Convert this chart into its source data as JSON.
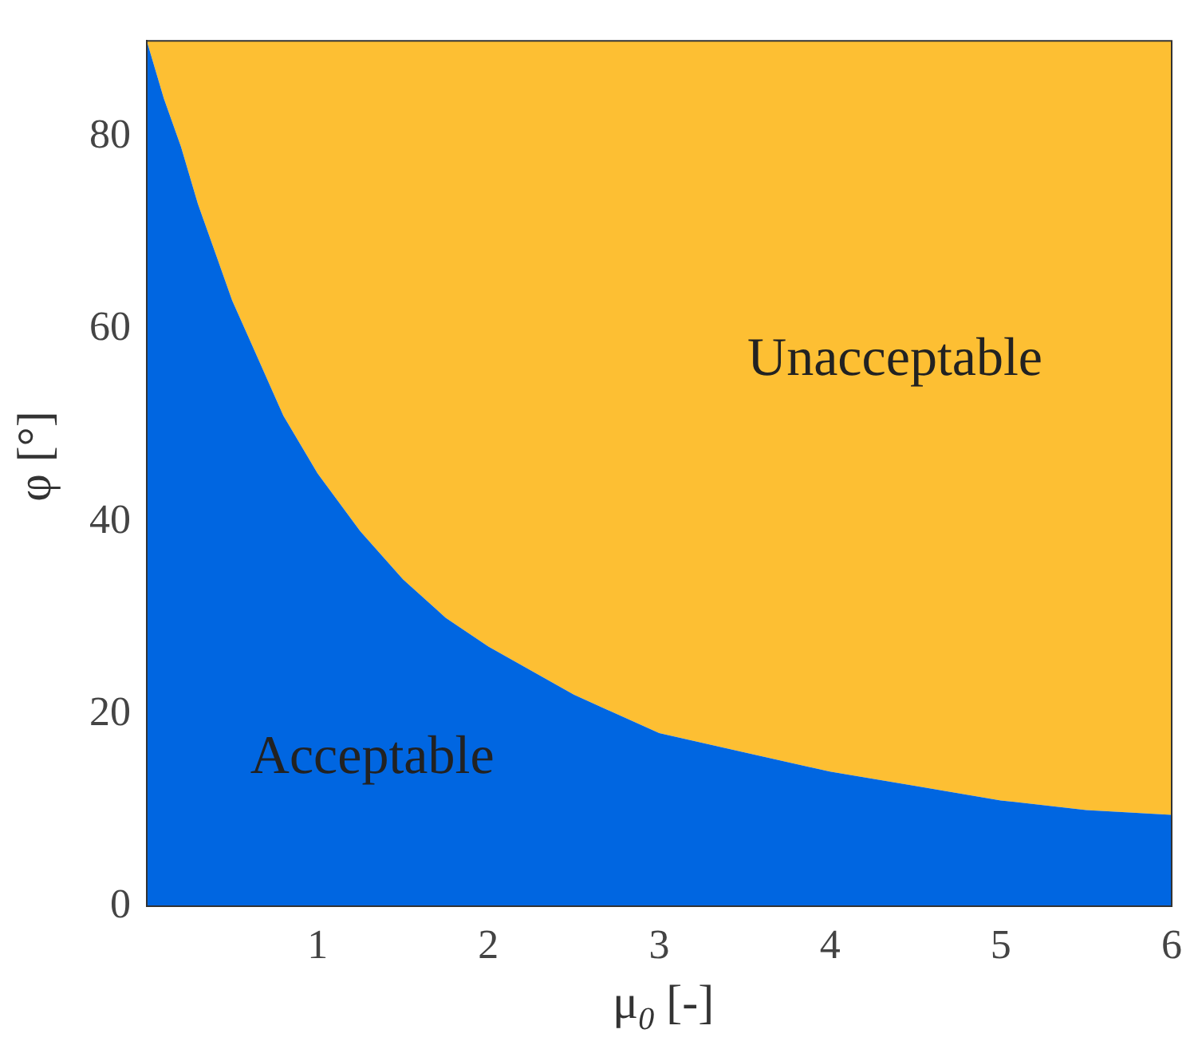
{
  "chart_data": {
    "type": "area",
    "stacked": true,
    "xlabel": "μ$_{0}$ [-]",
    "ylabel": "φ [°]",
    "x": [
      0,
      0.1,
      0.2,
      0.3,
      0.4,
      0.5,
      0.6,
      0.8,
      1,
      1.25,
      1.5,
      1.75,
      2,
      2.5,
      3,
      3.5,
      4,
      4.5,
      5,
      5.5,
      6
    ],
    "xlim": [
      0,
      6
    ],
    "xticks": [
      {
        "value": 0,
        "label": null
      },
      1,
      2,
      3,
      4,
      5,
      6
    ],
    "ylim": [
      0,
      90
    ],
    "yticks": [
      0,
      20,
      40,
      60,
      80
    ],
    "series": [
      {
        "color": "#0066e1",
        "values": [
          90,
          84,
          79,
          73,
          68,
          63,
          59,
          51,
          45,
          39,
          34,
          30,
          27,
          22,
          18,
          16,
          14,
          12.5,
          11,
          10,
          9.5
        ]
      },
      {
        "color": "#fdbf33",
        "values": [
          0,
          6,
          11,
          17,
          22,
          27,
          31,
          39,
          45,
          51,
          56,
          60,
          63,
          68,
          72,
          74,
          76,
          77.5,
          79,
          80,
          80.5
        ]
      }
    ],
    "annotations": [
      "Unacceptable",
      "Acceptable"
    ],
    "legend": false
  }
}
